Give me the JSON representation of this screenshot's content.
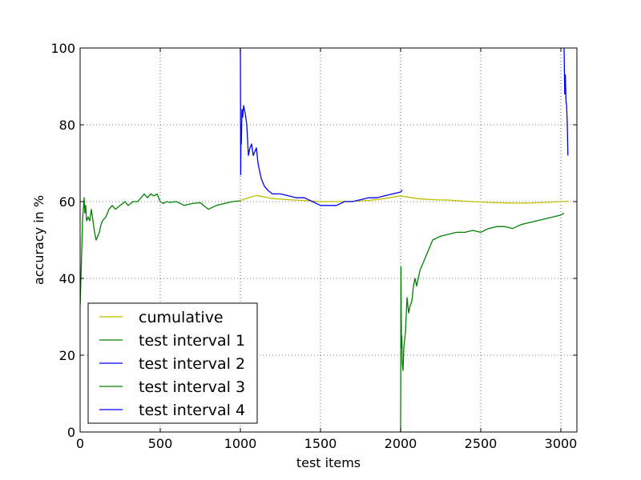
{
  "chart_data": {
    "type": "line",
    "title": "",
    "xlabel": "test items",
    "ylabel": "accuracy in %",
    "xlim": [
      0,
      3100
    ],
    "ylim": [
      0,
      100
    ],
    "x_ticks": [
      0,
      500,
      1000,
      1500,
      2000,
      2500,
      3000
    ],
    "y_ticks": [
      0,
      20,
      40,
      60,
      80,
      100
    ],
    "grid": true,
    "legend_position": "lower-left",
    "series": [
      {
        "name": "cumulative",
        "color": "#bfbf00",
        "x": [
          1000,
          1050,
          1100,
          1150,
          1200,
          1300,
          1400,
          1500,
          1600,
          1700,
          1800,
          1900,
          2000,
          2100,
          2200,
          2300,
          2400,
          2500,
          2600,
          2700,
          2800,
          2900,
          3000,
          3050
        ],
        "y": [
          60.3,
          61.0,
          61.6,
          61.2,
          60.8,
          60.5,
          60.3,
          60.0,
          60.0,
          60.1,
          60.3,
          60.8,
          61.5,
          60.8,
          60.5,
          60.4,
          60.1,
          59.9,
          59.7,
          59.6,
          59.6,
          59.8,
          60.0,
          60.1
        ]
      },
      {
        "name": "test interval 1",
        "color": "#008000",
        "x": [
          0,
          5,
          10,
          15,
          20,
          25,
          30,
          35,
          40,
          50,
          60,
          70,
          80,
          90,
          100,
          110,
          120,
          130,
          140,
          160,
          180,
          200,
          220,
          250,
          280,
          300,
          330,
          360,
          400,
          420,
          440,
          460,
          480,
          500,
          520,
          540,
          560,
          600,
          650,
          700,
          750,
          800,
          850,
          900,
          950,
          1000
        ],
        "y": [
          33,
          40,
          47,
          55,
          58,
          61,
          57,
          59,
          55,
          56,
          55,
          58,
          55,
          52,
          50,
          51,
          52,
          54,
          55,
          56,
          58,
          59,
          58,
          59,
          60,
          59,
          60,
          60,
          62,
          61,
          62,
          61.5,
          62,
          60,
          59.5,
          60,
          59.8,
          60,
          59,
          59.5,
          59.7,
          58,
          59,
          59.5,
          60,
          60.2
        ]
      },
      {
        "name": "test interval 2",
        "color": "#0000ff",
        "x": [
          1000,
          1002,
          1004,
          1006,
          1010,
          1015,
          1020,
          1030,
          1040,
          1050,
          1060,
          1070,
          1080,
          1090,
          1100,
          1110,
          1120,
          1130,
          1150,
          1170,
          1200,
          1250,
          1300,
          1350,
          1400,
          1450,
          1500,
          1550,
          1600,
          1650,
          1700,
          1750,
          1800,
          1850,
          1900,
          1950,
          2000,
          2010
        ],
        "y": [
          100,
          67,
          80,
          75,
          84,
          82,
          85,
          83,
          80,
          72,
          74,
          75,
          72,
          73,
          74,
          70,
          68,
          66,
          64,
          63,
          62,
          62,
          61.5,
          61,
          61,
          60,
          59,
          59,
          59,
          60,
          60,
          60.5,
          61,
          61,
          61.5,
          62,
          62.5,
          63
        ]
      },
      {
        "name": "test interval 3",
        "color": "#008000",
        "x": [
          2000,
          2002,
          2004,
          2006,
          2008,
          2010,
          2015,
          2020,
          2030,
          2040,
          2050,
          2060,
          2070,
          2080,
          2090,
          2100,
          2120,
          2140,
          2160,
          2180,
          2200,
          2250,
          2300,
          2350,
          2400,
          2450,
          2500,
          2550,
          2600,
          2650,
          2700,
          2750,
          2800,
          2850,
          2900,
          2950,
          3000,
          3020
        ],
        "y": [
          0,
          43,
          30,
          22,
          25,
          18,
          16,
          22,
          26,
          35,
          31,
          33,
          34,
          38,
          40,
          38,
          42,
          44,
          46,
          48,
          50,
          51,
          51.5,
          52,
          52,
          52.5,
          52,
          53,
          53.5,
          53.5,
          53,
          54,
          54.5,
          55,
          55.5,
          56,
          56.5,
          57
        ]
      },
      {
        "name": "test interval 4",
        "color": "#0000ff",
        "x": [
          3020,
          3024,
          3028,
          3032,
          3036,
          3040,
          3044
        ],
        "y": [
          100,
          88,
          93,
          86,
          85,
          80,
          72
        ]
      }
    ]
  }
}
